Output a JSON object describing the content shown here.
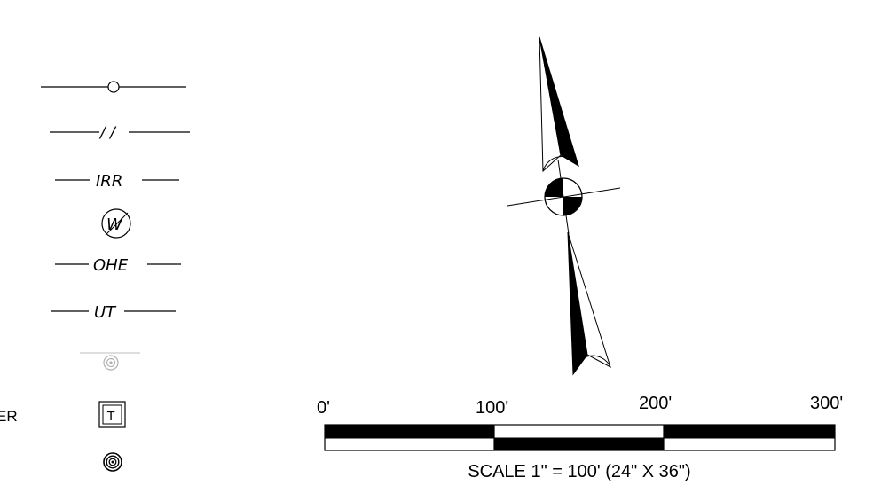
{
  "legend": {
    "partial_label": "ER",
    "line_irr": "IRR",
    "line_ohe": "OHE",
    "line_ut": "UT",
    "fence_mark": "/ /",
    "water_symbol": "W",
    "telephone_symbol": "T"
  },
  "scale_bar": {
    "ticks": [
      "0'",
      "100'",
      "200'",
      "300'"
    ],
    "caption": "SCALE 1\" = 100' (24\" X 36\")"
  }
}
